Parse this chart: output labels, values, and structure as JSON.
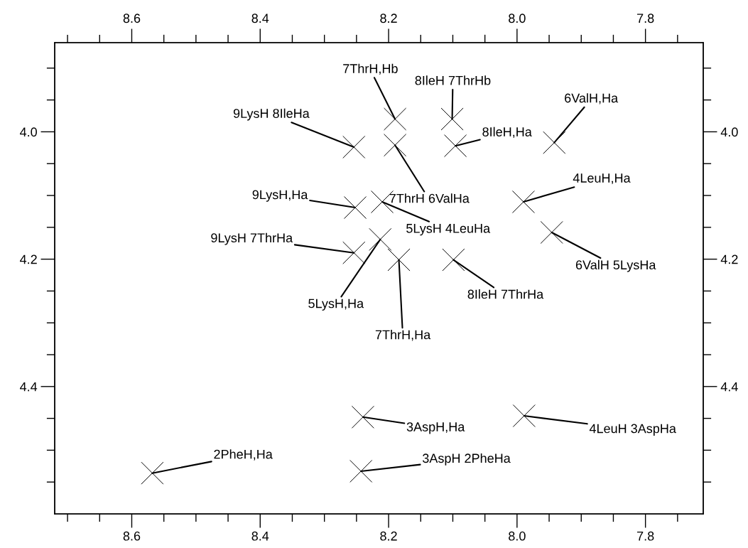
{
  "chart_data": {
    "type": "scatter",
    "marker": "cross",
    "grid": false,
    "xlim": [
      8.72,
      7.71
    ],
    "ylim": [
      4.6,
      3.86
    ],
    "x2lim": [
      8.72,
      7.71
    ],
    "y2lim": [
      4.6,
      3.86
    ],
    "xticks": [
      8.6,
      8.4,
      8.2,
      {
        "value": 8.0,
        "label": "8.0"
      },
      7.8,
      {
        "value": 8.7,
        "label": null
      },
      {
        "value": 8.65,
        "label": null
      },
      {
        "value": 8.55,
        "label": null
      },
      {
        "value": 8.5,
        "label": null
      },
      {
        "value": 8.45,
        "label": null
      },
      {
        "value": 8.35,
        "label": null
      },
      {
        "value": 8.3,
        "label": null
      },
      {
        "value": 8.25,
        "label": null
      },
      {
        "value": 8.15,
        "label": null
      },
      {
        "value": 8.1,
        "label": null
      },
      {
        "value": 8.05,
        "label": null
      },
      {
        "value": 7.95,
        "label": null
      },
      {
        "value": 7.9,
        "label": null
      },
      {
        "value": 7.85,
        "label": null
      },
      {
        "value": 7.75,
        "label": null
      }
    ],
    "x2ticks": [
      8.6,
      8.4,
      8.2,
      {
        "value": 8.0,
        "label": "8.0"
      },
      7.8,
      {
        "value": 8.7,
        "label": null
      },
      {
        "value": 8.65,
        "label": null
      },
      {
        "value": 8.55,
        "label": null
      },
      {
        "value": 8.5,
        "label": null
      },
      {
        "value": 8.45,
        "label": null
      },
      {
        "value": 8.35,
        "label": null
      },
      {
        "value": 8.3,
        "label": null
      },
      {
        "value": 8.25,
        "label": null
      },
      {
        "value": 8.15,
        "label": null
      },
      {
        "value": 8.1,
        "label": null
      },
      {
        "value": 8.05,
        "label": null
      },
      {
        "value": 7.95,
        "label": null
      },
      {
        "value": 7.9,
        "label": null
      },
      {
        "value": 7.85,
        "label": null
      },
      {
        "value": 7.75,
        "label": null
      }
    ],
    "yticks": [
      {
        "value": 4.0,
        "label": "4.0"
      },
      4.2,
      4.4,
      {
        "value": 3.9,
        "label": null
      },
      {
        "value": 3.95,
        "label": null
      },
      {
        "value": 4.05,
        "label": null
      },
      {
        "value": 4.1,
        "label": null
      },
      {
        "value": 4.15,
        "label": null
      },
      {
        "value": 4.25,
        "label": null
      },
      {
        "value": 4.3,
        "label": null
      },
      {
        "value": 4.35,
        "label": null
      },
      {
        "value": 4.45,
        "label": null
      },
      {
        "value": 4.5,
        "label": null
      },
      {
        "value": 4.55,
        "label": null
      }
    ],
    "y2ticks": [
      {
        "value": 4.0,
        "label": "4.0"
      },
      4.2,
      4.4,
      {
        "value": 3.9,
        "label": null
      },
      {
        "value": 3.95,
        "label": null
      },
      {
        "value": 4.05,
        "label": null
      },
      {
        "value": 4.1,
        "label": null
      },
      {
        "value": 4.15,
        "label": null
      },
      {
        "value": 4.25,
        "label": null
      },
      {
        "value": 4.3,
        "label": null
      },
      {
        "value": 4.35,
        "label": null
      },
      {
        "value": 4.45,
        "label": null
      },
      {
        "value": 4.5,
        "label": null
      },
      {
        "value": 4.55,
        "label": null
      }
    ],
    "series": [
      {
        "color": "#000000",
        "x": [
          8.254,
          8.19,
          8.19,
          8.101,
          8.096,
          8.252,
          8.21,
          8.254,
          8.213,
          8.184,
          8.099,
          7.942,
          7.99,
          7.946,
          8.24,
          8.243,
          8.568,
          7.989
        ],
        "values": [
          4.024,
          3.98,
          4.021,
          3.98,
          4.022,
          4.119,
          4.11,
          4.19,
          4.169,
          4.201,
          4.201,
          4.017,
          4.11,
          4.158,
          4.448,
          4.533,
          4.536,
          4.446
        ]
      }
    ],
    "annotations": [
      {
        "text": "9LysH 8IleHa",
        "x": 8.254,
        "y": 4.024
      },
      {
        "text": "7ThrH,Hb",
        "x": 8.19,
        "y": 3.98
      },
      {
        "text": "7ThrH 6ValHa",
        "x": 8.19,
        "y": 4.021
      },
      {
        "text": "8IleH 7ThrHb",
        "x": 8.101,
        "y": 3.98
      },
      {
        "text": "8IleH,Ha",
        "x": 8.096,
        "y": 4.022
      },
      {
        "text": "9LysH,Ha",
        "x": 8.252,
        "y": 4.119
      },
      {
        "text": "5LysH 4LeuHa",
        "x": 8.21,
        "y": 4.11
      },
      {
        "text": "9LysH 7ThrHa",
        "x": 8.254,
        "y": 4.19
      },
      {
        "text": "5LysH,Ha",
        "x": 8.213,
        "y": 4.169
      },
      {
        "text": "7ThrH,Ha",
        "x": 8.184,
        "y": 4.201
      },
      {
        "text": "8IleH 7ThrHa",
        "x": 8.099,
        "y": 4.201
      },
      {
        "text": "6ValH,Ha",
        "x": 7.942,
        "y": 4.017
      },
      {
        "text": "4LeuH,Ha",
        "x": 7.99,
        "y": 4.11
      },
      {
        "text": "6ValH 5LysHa",
        "x": 7.946,
        "y": 4.158
      },
      {
        "text": "3AspH,Ha",
        "x": 8.24,
        "y": 4.448
      },
      {
        "text": "3AspH 2PheHa",
        "x": 8.243,
        "y": 4.533
      },
      {
        "text": "2PheH,Ha",
        "x": 8.568,
        "y": 4.536
      },
      {
        "text": "4LeuH 3AspHa",
        "x": 7.989,
        "y": 4.446
      }
    ]
  }
}
